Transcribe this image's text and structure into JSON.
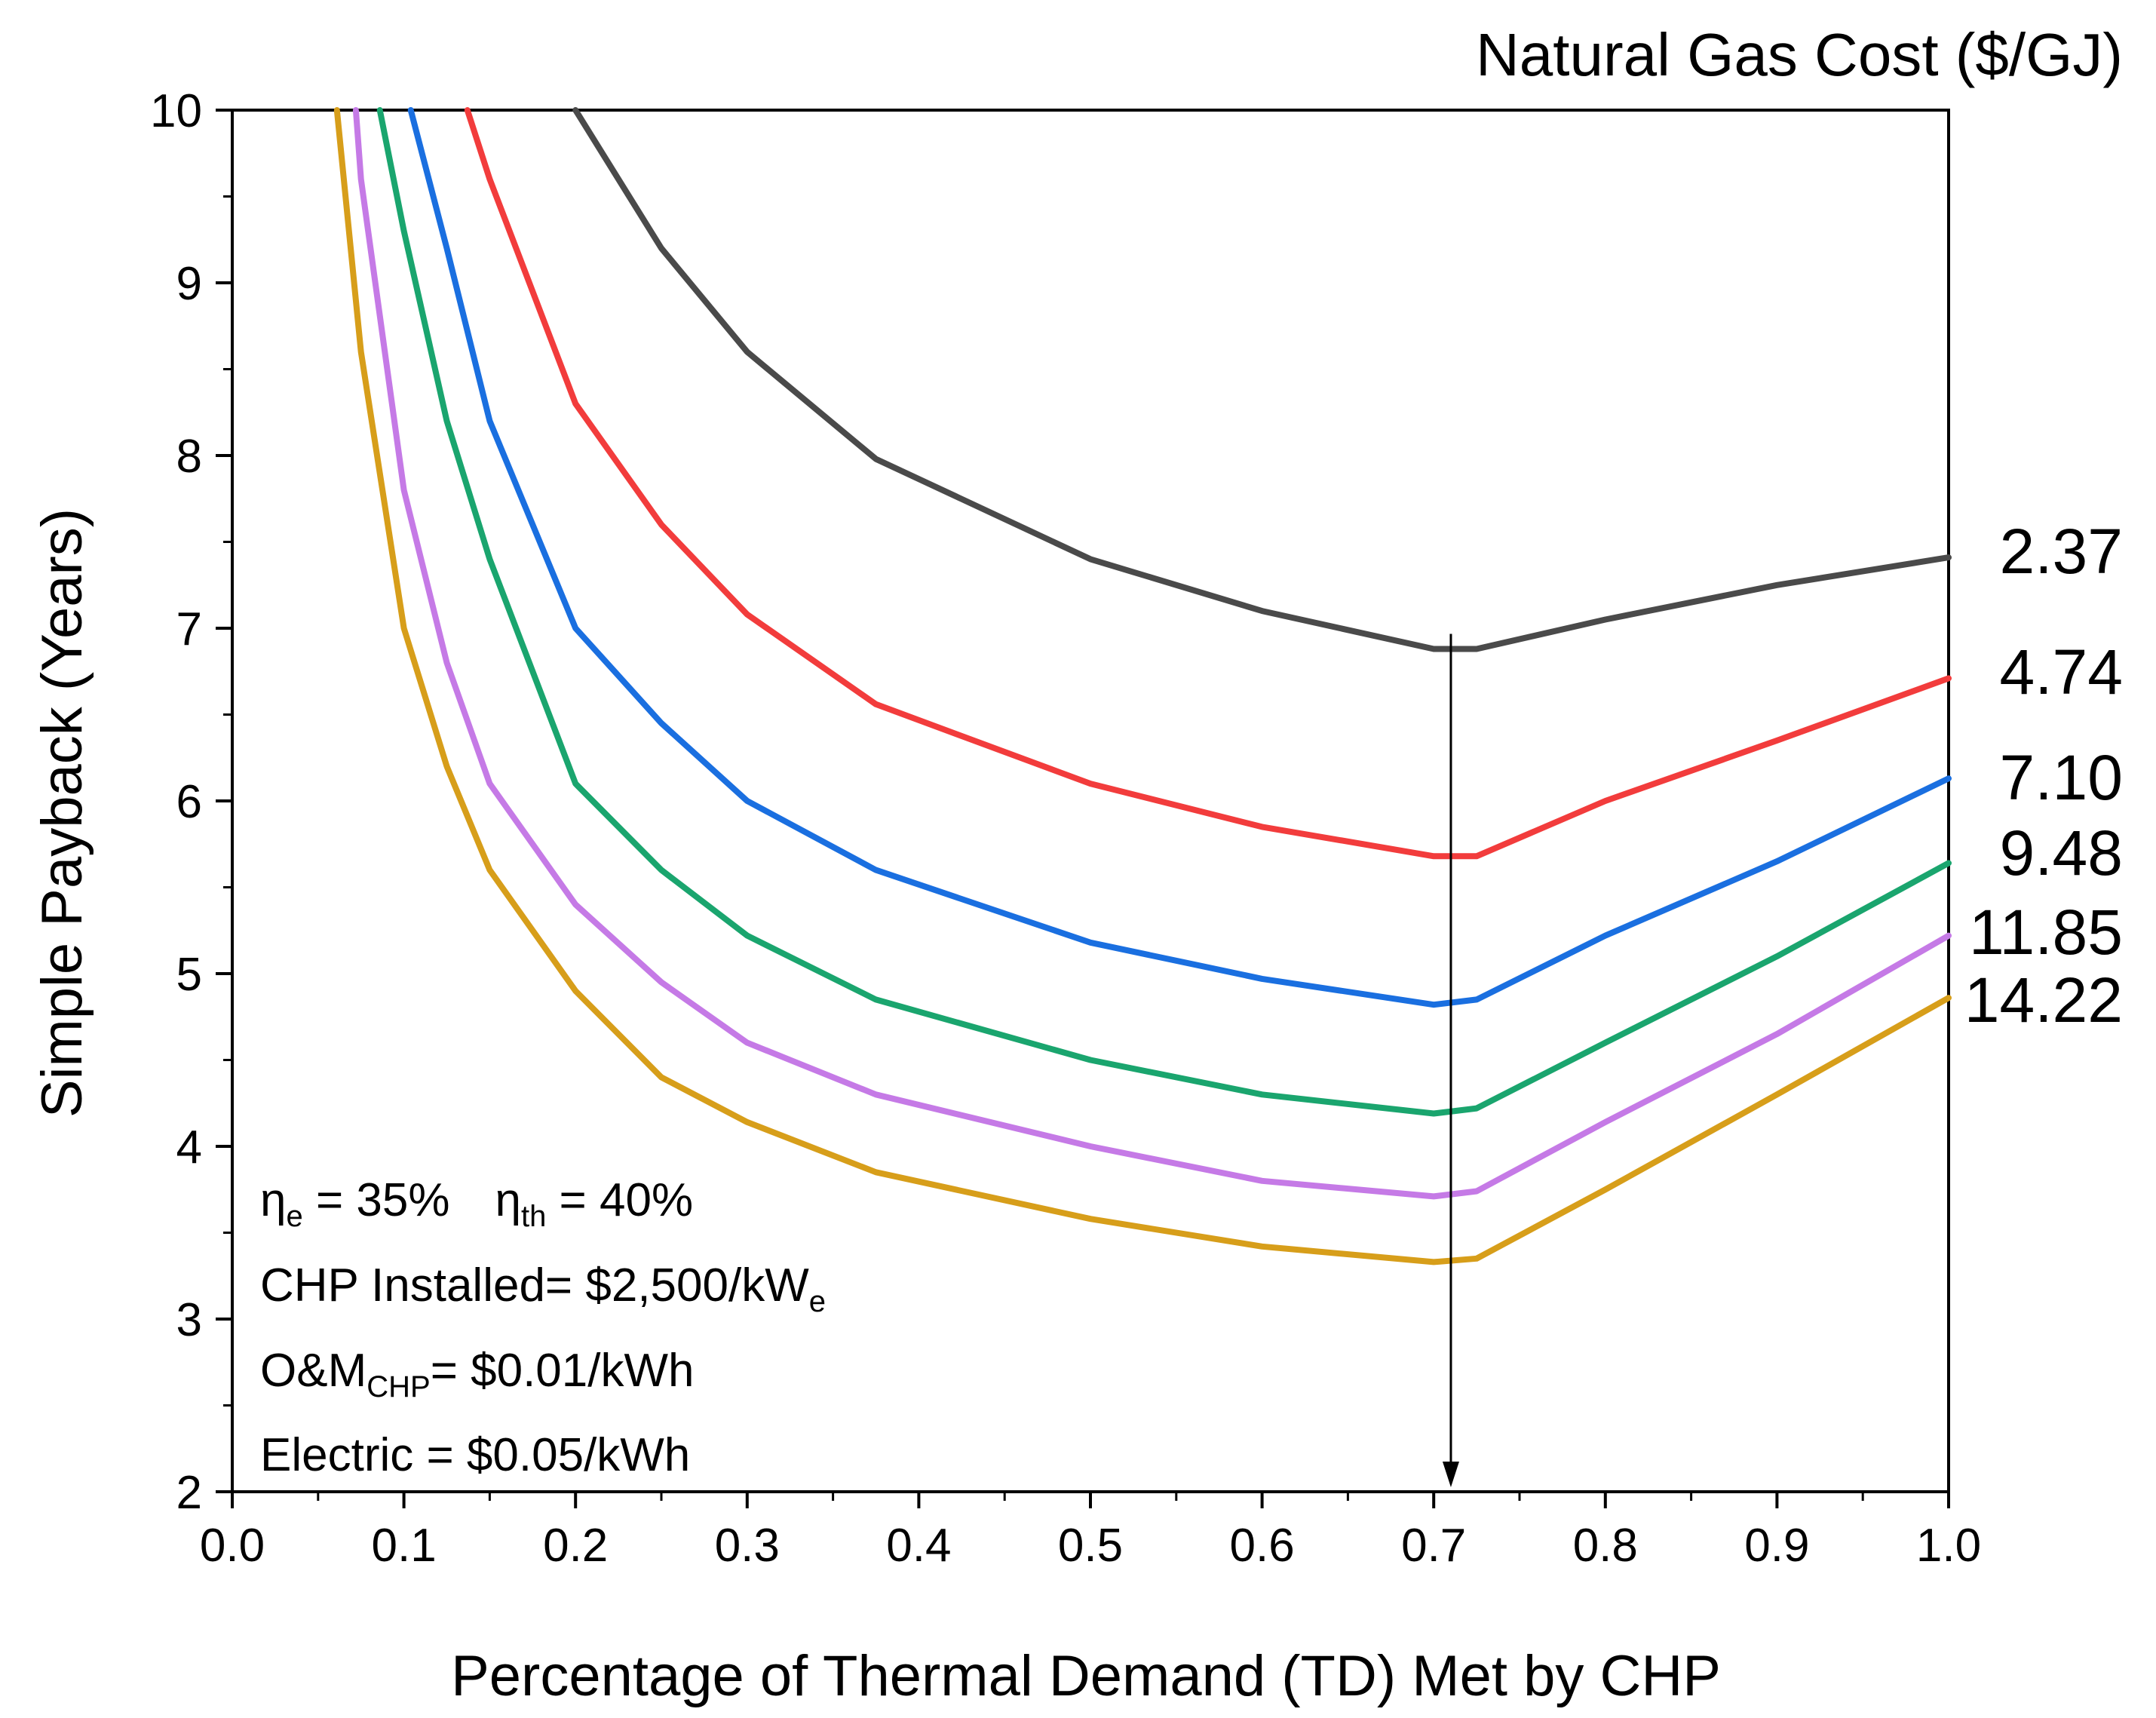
{
  "chart_data": {
    "type": "line",
    "title": "",
    "xlabel": "Percentage of Thermal Demand (TD) Met by CHP",
    "ylabel": "Simple Payback (Years)",
    "xlim": [
      0.0,
      1.0
    ],
    "ylim": [
      2,
      10
    ],
    "x_ticks": [
      "0.0",
      "0.1",
      "0.2",
      "0.3",
      "0.4",
      "0.5",
      "0.6",
      "0.7",
      "0.8",
      "0.9",
      "1.0"
    ],
    "y_ticks": [
      "2",
      "3",
      "4",
      "5",
      "6",
      "7",
      "8",
      "9",
      "10"
    ],
    "legend_title": "Natural Gas Cost ($/GJ)",
    "marker_x": 0.71,
    "series": [
      {
        "name": "2.37",
        "color": "#4a4a4a",
        "x": [
          0.2,
          0.25,
          0.3,
          0.375,
          0.5,
          0.6,
          0.7,
          0.725,
          0.8,
          0.9,
          1.0
        ],
        "y": [
          10.0,
          9.2,
          8.6,
          7.98,
          7.4,
          7.1,
          6.88,
          6.88,
          7.05,
          7.25,
          7.41
        ]
      },
      {
        "name": "4.74",
        "color": "#f23c3c",
        "x": [
          0.137,
          0.15,
          0.2,
          0.25,
          0.3,
          0.375,
          0.5,
          0.6,
          0.7,
          0.725,
          0.8,
          0.9,
          1.0
        ],
        "y": [
          10.0,
          9.6,
          8.3,
          7.6,
          7.08,
          6.56,
          6.1,
          5.85,
          5.68,
          5.68,
          6.0,
          6.35,
          6.71
        ]
      },
      {
        "name": "7.10",
        "color": "#1a6fe0",
        "x": [
          0.104,
          0.125,
          0.15,
          0.2,
          0.25,
          0.3,
          0.375,
          0.5,
          0.6,
          0.7,
          0.725,
          0.8,
          0.9,
          1.0
        ],
        "y": [
          10.0,
          9.2,
          8.2,
          7.0,
          6.45,
          6.0,
          5.6,
          5.18,
          4.97,
          4.82,
          4.85,
          5.22,
          5.65,
          6.13
        ]
      },
      {
        "name": "9.48",
        "color": "#1aa56e",
        "x": [
          0.086,
          0.1,
          0.125,
          0.15,
          0.2,
          0.25,
          0.3,
          0.375,
          0.5,
          0.6,
          0.7,
          0.725,
          0.8,
          0.9,
          1.0
        ],
        "y": [
          10.0,
          9.3,
          8.2,
          7.4,
          6.1,
          5.6,
          5.22,
          4.85,
          4.5,
          4.3,
          4.19,
          4.22,
          4.6,
          5.1,
          5.64
        ]
      },
      {
        "name": "11.85",
        "color": "#c57ae6",
        "x": [
          0.072,
          0.075,
          0.1,
          0.125,
          0.15,
          0.2,
          0.25,
          0.3,
          0.375,
          0.5,
          0.6,
          0.7,
          0.725,
          0.8,
          0.9,
          1.0
        ],
        "y": [
          10.0,
          9.6,
          7.8,
          6.8,
          6.1,
          5.4,
          4.95,
          4.6,
          4.3,
          4.0,
          3.8,
          3.71,
          3.74,
          4.14,
          4.65,
          5.22
        ]
      },
      {
        "name": "14.22",
        "color": "#d79e1a",
        "x": [
          0.061,
          0.075,
          0.1,
          0.125,
          0.15,
          0.2,
          0.25,
          0.3,
          0.375,
          0.5,
          0.6,
          0.7,
          0.725,
          0.8,
          0.9,
          1.0
        ],
        "y": [
          10.0,
          8.6,
          7.0,
          6.2,
          5.6,
          4.9,
          4.4,
          4.14,
          3.85,
          3.58,
          3.42,
          3.33,
          3.35,
          3.75,
          4.3,
          4.86
        ]
      }
    ],
    "annotations": {
      "eff_e_symbol": "η",
      "eff_e_sub": "e",
      "eff_e_value": " = 35%",
      "eff_th_symbol": "η",
      "eff_th_sub": "th",
      "eff_th_value": " = 40%",
      "installed_text": "CHP Installed= $2,500/kW",
      "installed_sub": "e",
      "om_text": "O&M",
      "om_sub": "CHP",
      "om_value": "= $0.01/kWh",
      "electric_text": "Electric = $0.05/kWh"
    }
  }
}
